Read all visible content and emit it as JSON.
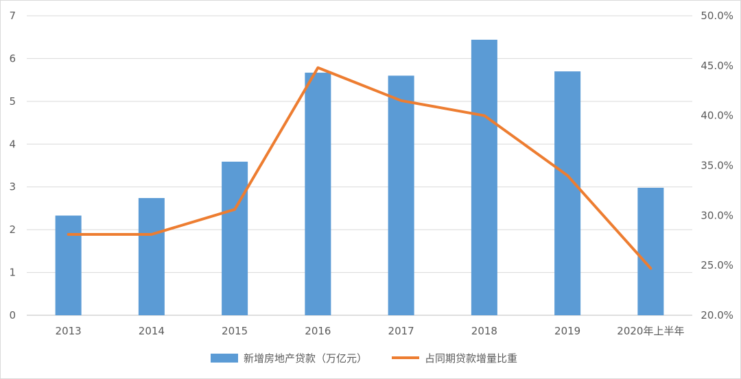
{
  "chart_data": {
    "type": "bar+line",
    "categories": [
      "2013",
      "2014",
      "2015",
      "2016",
      "2017",
      "2018",
      "2019",
      "2020年上半年"
    ],
    "series": [
      {
        "name": "新增房地产贷款（万亿元）",
        "type": "bar",
        "axis": "left",
        "color": "#5b9bd5",
        "values": [
          2.33,
          2.74,
          3.59,
          5.67,
          5.6,
          6.44,
          5.7,
          2.98
        ]
      },
      {
        "name": "占同期贷款增量比重",
        "type": "line",
        "axis": "right",
        "color": "#ed7d31",
        "values": [
          28.1,
          28.1,
          30.6,
          44.8,
          41.5,
          40.0,
          34.0,
          24.7
        ]
      }
    ],
    "y_left": {
      "min": 0,
      "max": 7,
      "step": 1,
      "ticks": [
        "0",
        "1",
        "2",
        "3",
        "4",
        "5",
        "6",
        "7"
      ]
    },
    "y_right": {
      "min": 20,
      "max": 50,
      "step": 5,
      "ticks": [
        "20.0%",
        "25.0%",
        "30.0%",
        "35.0%",
        "40.0%",
        "45.0%",
        "50.0%"
      ]
    },
    "grid": true,
    "legend_position": "bottom",
    "title": "",
    "xlabel": "",
    "ylabel": ""
  }
}
